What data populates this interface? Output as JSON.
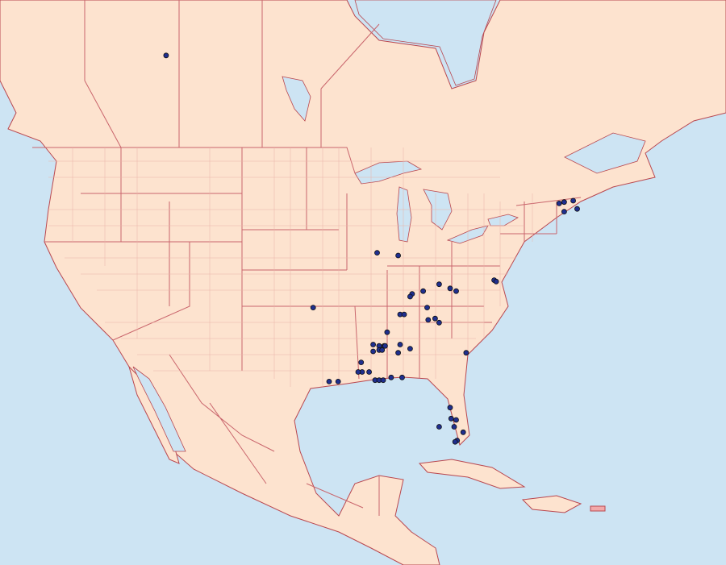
{
  "map": {
    "colors": {
      "ocean": "#cde4f3",
      "land": "#fde3cf",
      "border": "#b9474f",
      "highlight_territory": "#f2a9a9",
      "marker": "#1f2f8f"
    },
    "marker_icon": "circle-dot",
    "records": [
      {
        "lat": 53.6,
        "lon": -111.3
      },
      {
        "lat": 39.2,
        "lon": -90.2
      },
      {
        "lat": 39.0,
        "lon": -88.1
      },
      {
        "lat": 35.2,
        "lon": -96.6
      },
      {
        "lat": 36.2,
        "lon": -86.7
      },
      {
        "lat": 36.0,
        "lon": -86.9
      },
      {
        "lat": 36.4,
        "lon": -85.6
      },
      {
        "lat": 36.9,
        "lon": -84.0
      },
      {
        "lat": 36.6,
        "lon": -82.9
      },
      {
        "lat": 36.4,
        "lon": -82.3
      },
      {
        "lat": 37.2,
        "lon": -78.5
      },
      {
        "lat": 37.1,
        "lon": -78.3
      },
      {
        "lat": 34.7,
        "lon": -87.9
      },
      {
        "lat": 34.7,
        "lon": -87.5
      },
      {
        "lat": 35.2,
        "lon": -85.2
      },
      {
        "lat": 34.4,
        "lon": -84.4
      },
      {
        "lat": 34.1,
        "lon": -84.0
      },
      {
        "lat": 34.3,
        "lon": -85.1
      },
      {
        "lat": 33.4,
        "lon": -89.2
      },
      {
        "lat": 32.5,
        "lon": -90.6
      },
      {
        "lat": 32.4,
        "lon": -90.0
      },
      {
        "lat": 32.4,
        "lon": -89.5
      },
      {
        "lat": 32.1,
        "lon": -90.0
      },
      {
        "lat": 32.1,
        "lon": -89.7
      },
      {
        "lat": 32.4,
        "lon": -89.4
      },
      {
        "lat": 32.0,
        "lon": -90.6
      },
      {
        "lat": 32.5,
        "lon": -87.9
      },
      {
        "lat": 31.9,
        "lon": -88.1
      },
      {
        "lat": 32.2,
        "lon": -86.9
      },
      {
        "lat": 31.2,
        "lon": -91.8
      },
      {
        "lat": 30.5,
        "lon": -91.7
      },
      {
        "lat": 30.5,
        "lon": -91.0
      },
      {
        "lat": 30.5,
        "lon": -92.1
      },
      {
        "lat": 29.9,
        "lon": -90.4
      },
      {
        "lat": 29.9,
        "lon": -90.0
      },
      {
        "lat": 29.9,
        "lon": -89.6
      },
      {
        "lat": 30.1,
        "lon": -88.8
      },
      {
        "lat": 30.1,
        "lon": -87.7
      },
      {
        "lat": 29.8,
        "lon": -95.0
      },
      {
        "lat": 29.8,
        "lon": -94.1
      },
      {
        "lat": 31.9,
        "lon": -81.3
      },
      {
        "lat": 42.8,
        "lon": -72.0
      },
      {
        "lat": 42.9,
        "lon": -71.5
      },
      {
        "lat": 43.0,
        "lon": -70.6
      },
      {
        "lat": 42.2,
        "lon": -71.5
      },
      {
        "lat": 42.4,
        "lon": -70.2
      },
      {
        "lat": 27.9,
        "lon": -82.9
      },
      {
        "lat": 27.1,
        "lon": -82.8
      },
      {
        "lat": 27.0,
        "lon": -82.3
      },
      {
        "lat": 26.5,
        "lon": -82.5
      },
      {
        "lat": 26.1,
        "lon": -81.6
      },
      {
        "lat": 25.5,
        "lon": -82.2
      },
      {
        "lat": 25.4,
        "lon": -82.4
      },
      {
        "lat": 26.5,
        "lon": -84.0
      }
    ]
  }
}
